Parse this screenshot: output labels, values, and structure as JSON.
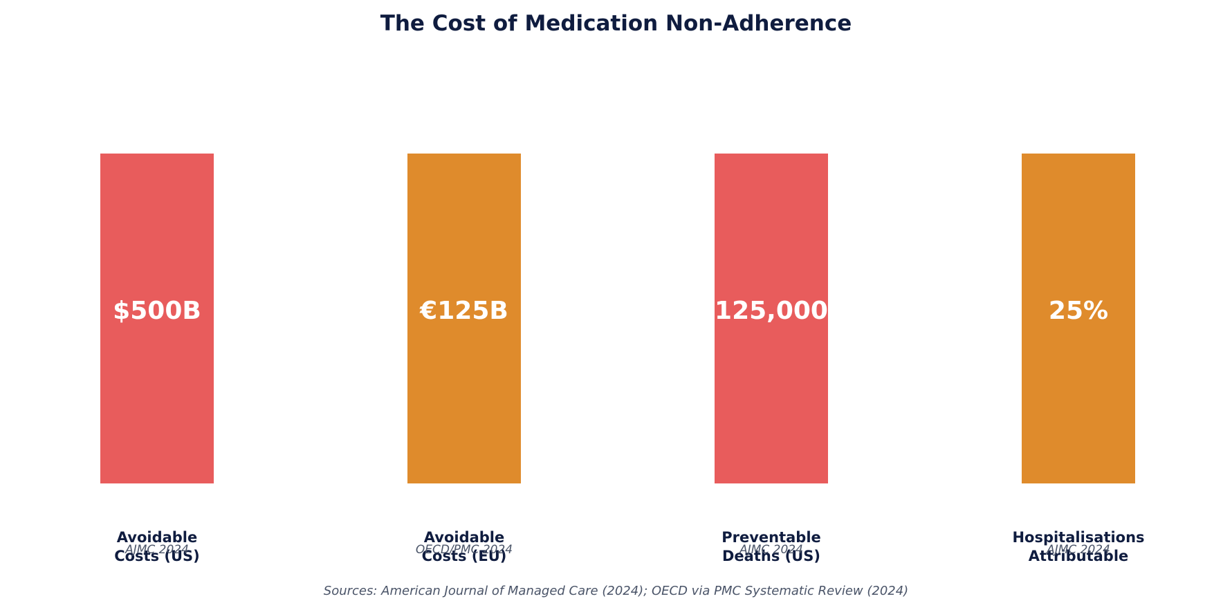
{
  "chart_data": {
    "type": "bar",
    "title": "The Cost of Medication Non-Adherence",
    "categories": [
      "Avoidable\nCosts (US)",
      "Avoidable\nCosts (EU)",
      "Preventable\nDeaths (US)",
      "Hospitalisations\nAttributable"
    ],
    "stats": [
      {
        "value_label": "$500B",
        "label": "Avoidable\nCosts (US)",
        "source": "AJMC 2024",
        "color": "#e85c5c"
      },
      {
        "value_label": "€125B",
        "label": "Avoidable\nCosts (EU)",
        "source": "OECD/PMC 2024",
        "color": "#df8b2c"
      },
      {
        "value_label": "125,000",
        "label": "Preventable\nDeaths (US)",
        "source": "AJMC 2024",
        "color": "#e85c5c"
      },
      {
        "value_label": "25%",
        "label": "Hospitalisations\nAttributable",
        "source": "AJMC 2024",
        "color": "#df8b2c"
      }
    ],
    "footer": "Sources: American Journal of Managed Care (2024); OECD via PMC Systematic Review (2024)",
    "grid": false,
    "legend": "none"
  }
}
